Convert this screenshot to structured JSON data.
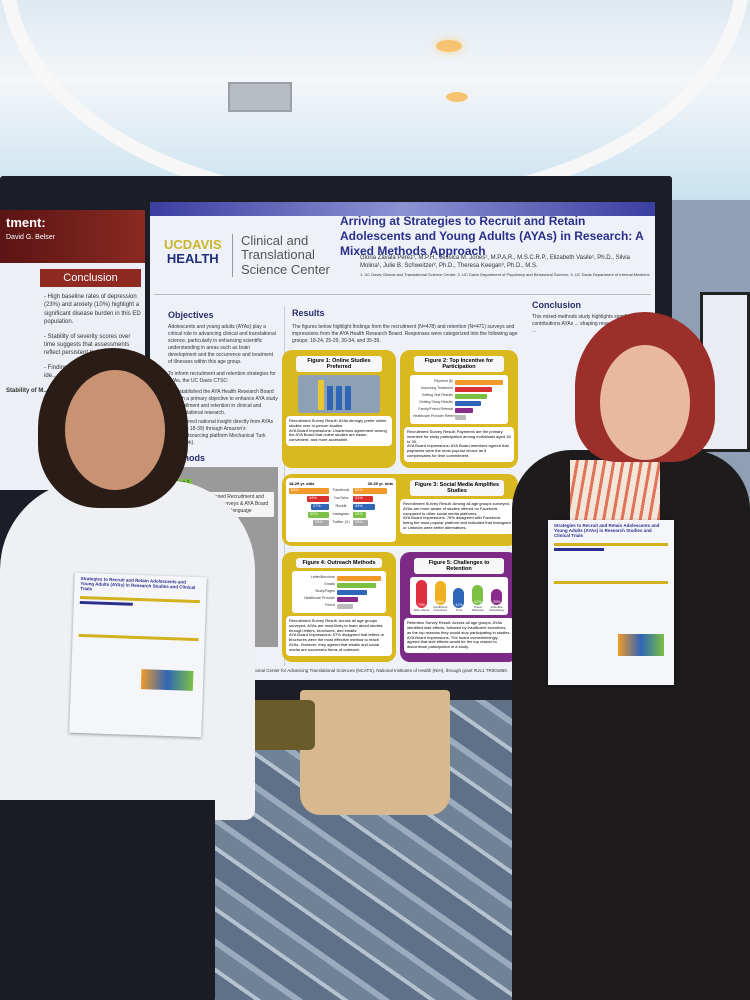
{
  "poster_left": {
    "header": "tment:",
    "authors": "David G. Belser",
    "conclusion_heading": "Conclusion",
    "bullets": [
      "- High baseline rates of depression (23%) and anxiety (10%) highlight a significant disease burden in this ED population.",
      "- Stability of severity scores over time suggests that assessments reflect persistent traits.",
      "- Findings su... health acce... early ide... of dep..."
    ],
    "chart_title": "Stability of M..."
  },
  "poster_main": {
    "logo": {
      "uc": "UC",
      "davis": "DAVIS",
      "health": "HEALTH"
    },
    "center_name": "Clinical and Translational Science Center",
    "title": "Arriving at Strategies to Recruit and Retain Adolescents and Young Adults (AYAs) in Research: A Mixed Methods Approach",
    "authors": "Gloria Zavala Perez¹, M.P.H., Jessica M. Jones¹, M.P.A.R., M.S.C.R.P., Elizabeth Vasile¹, Ph.D., Silvia Molina¹, Julie B. Schweitzer², Ph.D., Theresa Keegan³, Ph.D., M.S.",
    "affiliations": "1. UC Davis Clinical and Translational Science Center; 2. UC Davis Department of Psychiatry and Behavioral Science; 3. UC Davis Department of Internal Medicine",
    "objectives": {
      "heading": "Objectives",
      "text": "Adolescents and young adults (AYAs) play a critical role in advancing clinical and translational science, particularly in enhancing scientific understanding in areas such as brain development and the occurrence and treatment of illnesses within this age group.",
      "intro": "To inform recruitment and retention strategies for AYAs, the UC Davis CTSC:",
      "bullets": [
        "Established the AYA Health Research Board with a primary objective to enhance AYA study enrollment and retention in clinical and translational research.",
        "Gathered national insight directly from AYAs (ages 18-39) through Amazon's crowdsourcing platform Mechanical Turk (MTurk)."
      ]
    },
    "methods": {
      "heading": "Methods",
      "step": "Step 1",
      "step_text": "Developed Recruitment and Retention Surveys & AYA Board refined language"
    },
    "results": {
      "heading": "Results",
      "intro": "The figures below highlight findings from the recruitment (N=478) and retention (N=471) surveys and impressions from the AYA Health Research Board. Responses were categorized into the following age groups: 18-24, 25-29, 30-34, and 35-39.",
      "figures": [
        {
          "title": "Figure 1: Online Studies Preferred",
          "result": "Recruitment Survey Result: AYAs strongly prefer online studies over in-person studies.",
          "board": "AYA Board Impressions: Unanimous agreement among the AYA Board that online studies are easier, convenient, and more accessible."
        },
        {
          "title": "Figure 2: Top Incentive for Participation",
          "items": [
            "Payment ($)",
            "Improving Treatment",
            "Getting Test Results",
            "Getting Study Results",
            "Family/Friend Referral",
            "Healthcare Provider Referral"
          ],
          "result": "Recruitment Survey Result: Payments are the primary incentive for study participation among individuals aged 18 to 39.",
          "board": "AYA Board Impressions: AYA Board members agreed that payments were the most popular choice as it compensates for time commitment."
        },
        {
          "title": "Figure 3: Social Media Amplifies Studies",
          "groups": [
            "18-29 yr. olds",
            "30-39 yr. olds"
          ],
          "platforms": [
            "Facebook",
            "YouTube",
            "Reddit",
            "Instagram",
            "Twitter (X)"
          ],
          "values_18_29": [
            "63%",
            "34%",
            "27%",
            "32%",
            "25%"
          ],
          "values_30_39": [
            "52%",
            "31%",
            "34%",
            "19%",
            "22%"
          ],
          "result": "Recruitment Survey Result: Among all age groups surveyed, AYAs are more aware of studies offered on Facebook compared to other social media platforms.",
          "board": "AYA Board Impressions: 78% disagreed with Facebook being the most popular platform and indicated that Instagram or LinkedIn were better alternatives."
        },
        {
          "title": "Figure 4: Outreach Methods",
          "items": [
            "Letter/Brochure",
            "Emails",
            "Study/Pages",
            "Healthcare Provider",
            "Friend"
          ],
          "result": "Recruitment Survey Result: Across all age groups surveyed, AYAs are most likely to learn about studies through letters, brochures, and emails.",
          "board": "AYA Board Impressions: 57% disagreed that letters or brochures were the most effective method to reach AYAs. However, they agreed that emails and social media are successful forms of outreach."
        },
        {
          "title": "Figure 5: Challenges to Retention",
          "items": [
            "Side effects",
            "Insufficient Incentives",
            "Time",
            "Travel Distance",
            "Inflexible Scheduling"
          ],
          "values": [
            "70%",
            "55%",
            "42%",
            "42%",
            "29%"
          ],
          "result": "Retention Survey Result: Across all age groups, AYAs identified side effects, followed by insufficient incentives, as the top reasons they would stop participating in studies.",
          "board": "AYA Board Impressions: The board overwhelmingly agreed that side effects would be the top reason to discontinue participation in a study."
        }
      ]
    },
    "conclusion": {
      "heading": "Conclusion",
      "text": "This mixed-methods study highlights significant contributions AYAs ... shaping research agenda ..."
    },
    "funding": "...supported by the National Center for Advancing Translational Sciences (NCATS), National Institutes of Health (NIH), through grant #UL1 TR001860."
  },
  "handout": {
    "title": "Strategies to Recruit and Retain Adolescents and Young Adults (AYAs) in Research Studies and Clinical Trials"
  },
  "colors": {
    "poster_title": "#2a2f8a",
    "figure_yellow": "#d9b820",
    "figure_purple": "#7c2a85",
    "left_poster_red": "#8e2a22"
  }
}
